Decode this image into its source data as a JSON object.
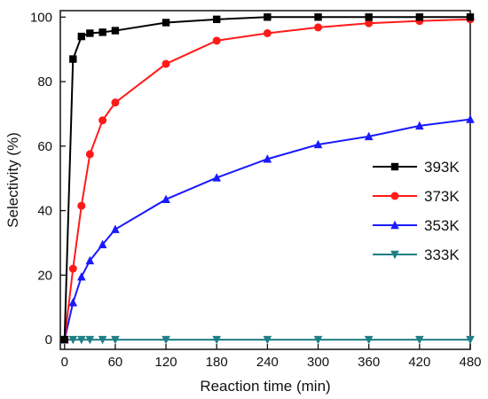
{
  "chart_data": {
    "type": "line",
    "title": "",
    "xlabel": "Reaction time (min)",
    "ylabel": "Selectivity (%)",
    "xlim": [
      -5,
      480
    ],
    "ylim": [
      -3,
      102
    ],
    "xticks": [
      0,
      60,
      120,
      180,
      240,
      300,
      360,
      420,
      480
    ],
    "yticks": [
      0,
      20,
      40,
      60,
      80,
      100
    ],
    "grid": false,
    "legend_position": "right",
    "series": [
      {
        "name": "393K",
        "color": "#000000",
        "marker": "square",
        "x": [
          0,
          10,
          20,
          30,
          45,
          60,
          120,
          180,
          240,
          300,
          360,
          420,
          480
        ],
        "y": [
          0,
          87,
          94,
          95,
          95.3,
          95.8,
          98.3,
          99.3,
          100,
          100,
          100,
          100,
          100
        ]
      },
      {
        "name": "373K",
        "color": "#ff1a1a",
        "marker": "circle",
        "x": [
          0,
          10,
          20,
          30,
          45,
          60,
          120,
          180,
          240,
          300,
          360,
          420,
          480
        ],
        "y": [
          0,
          22,
          41.5,
          57.5,
          68,
          73.5,
          85.5,
          92.7,
          95,
          96.8,
          98.1,
          98.8,
          99.3
        ]
      },
      {
        "name": "353K",
        "color": "#1a1aff",
        "marker": "triangle-up",
        "x": [
          0,
          10,
          20,
          30,
          45,
          60,
          120,
          180,
          240,
          300,
          360,
          420,
          480
        ],
        "y": [
          0,
          11.5,
          19.5,
          24.5,
          29.5,
          34.2,
          43.5,
          50.2,
          56,
          60.5,
          63,
          66.3,
          68.3
        ]
      },
      {
        "name": "333K",
        "color": "#1f7f86",
        "marker": "triangle-down",
        "x": [
          0,
          10,
          20,
          30,
          45,
          60,
          120,
          180,
          240,
          300,
          360,
          420,
          480
        ],
        "y": [
          0,
          0,
          0,
          0,
          0,
          0,
          0,
          0,
          0,
          0,
          0,
          0,
          0
        ]
      }
    ]
  }
}
